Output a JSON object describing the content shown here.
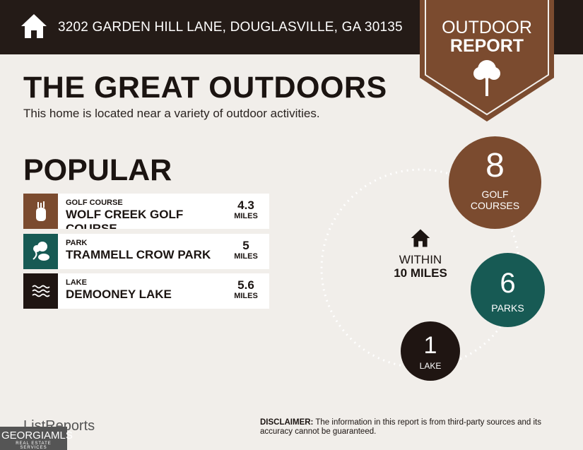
{
  "header": {
    "address": "3202 GARDEN HILL LANE, DOUGLASVILLE, GA 30135",
    "icon": "home-icon"
  },
  "badge": {
    "line1": "OUTDOOR",
    "line2": "REPORT",
    "icon": "tree-icon",
    "color": "#7b4b2f"
  },
  "title": "THE GREAT OUTDOORS",
  "subtitle": "This home is located near a variety of outdoor activities.",
  "popular": {
    "heading": "POPULAR",
    "items": [
      {
        "category": "GOLF COURSE",
        "name": "WOLF CREEK GOLF COURSE",
        "distance": "4.3",
        "unit": "MILES",
        "icon": "golf-bag-icon",
        "color": "#7b4b2f"
      },
      {
        "category": "PARK",
        "name": "TRAMMELL CROW PARK",
        "distance": "5",
        "unit": "MILES",
        "icon": "park-trees-icon",
        "color": "#175a54"
      },
      {
        "category": "LAKE",
        "name": "DEMOONEY LAKE",
        "distance": "5.6",
        "unit": "MILES",
        "icon": "waves-icon",
        "color": "#1f1512"
      }
    ]
  },
  "summary": {
    "within_line1": "WITHIN",
    "within_line2": "10 MILES",
    "counts": [
      {
        "value": "8",
        "label_line1": "GOLF",
        "label_line2": "COURSES",
        "color": "#7b4b2f"
      },
      {
        "value": "6",
        "label": "PARKS",
        "color": "#175a54"
      },
      {
        "value": "1",
        "label": "LAKE",
        "color": "#1f1512"
      }
    ]
  },
  "footer": {
    "logo": "ListReports",
    "mls": "GEORGIAMLS",
    "mls_sub": "REAL ESTATE SERVICES",
    "disclaimer_label": "DISCLAIMER:",
    "disclaimer": " The information in this report is from third-party sources and its accuracy cannot be guaranteed."
  }
}
